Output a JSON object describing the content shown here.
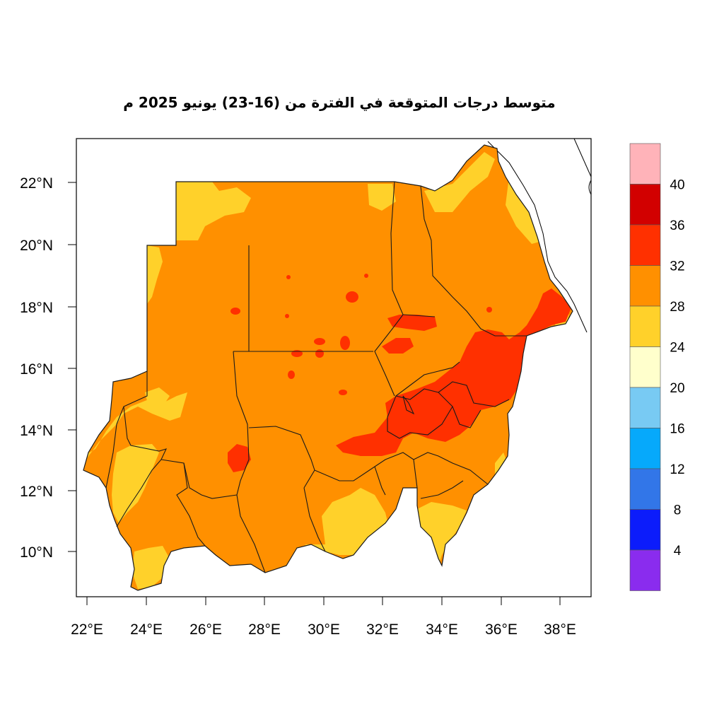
{
  "title": "متوسط درجات المتوقعة في الفترة من (16-23) يونيو 2025 م",
  "x_ticks": [
    "22°E",
    "24°E",
    "26°E",
    "28°E",
    "30°E",
    "32°E",
    "34°E",
    "36°E",
    "38°E"
  ],
  "y_ticks": [
    "22°N",
    "20°N",
    "18°N",
    "16°N",
    "14°N",
    "12°N",
    "10°N"
  ],
  "legend": {
    "colors": [
      "#ffb3b9",
      "#d20000",
      "#ff3000",
      "#ff9000",
      "#ffd12a",
      "#ffffcc",
      "#78caf3",
      "#06a9fb",
      "#3276e8",
      "#0c1cfb",
      "#8a2cee"
    ],
    "labels": [
      "40",
      "36",
      "32",
      "28",
      "24",
      "20",
      "16",
      "12",
      "8",
      "4"
    ]
  },
  "colors": {
    "frame": "#000000",
    "border": "#1a1a1a",
    "sea": "#ffffff"
  }
}
